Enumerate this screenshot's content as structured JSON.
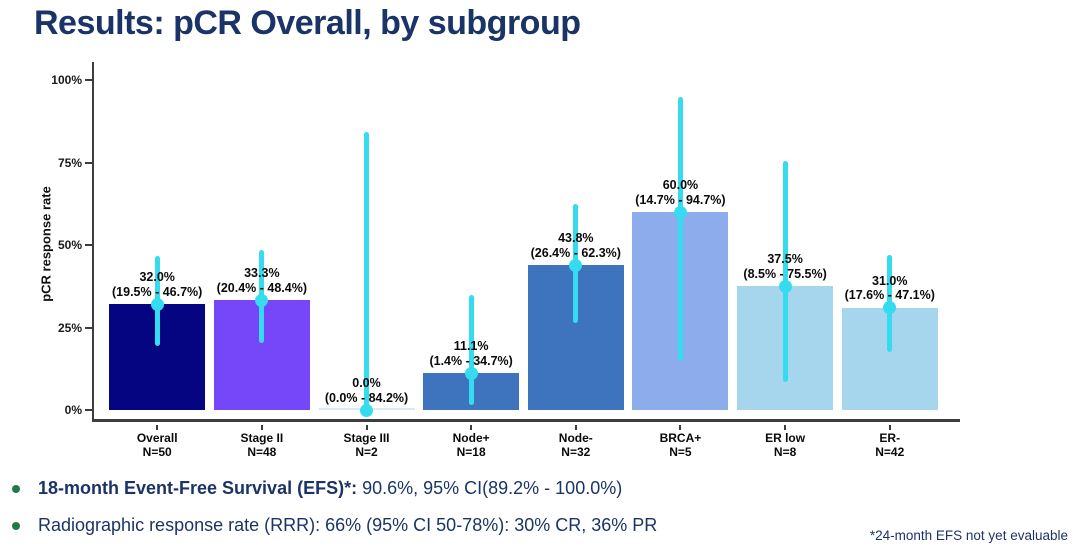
{
  "page": {
    "title": "Results: pCR Overall, by subgroup",
    "footnote": "*24-month EFS not yet evaluable"
  },
  "bullets": [
    {
      "bold": "18-month Event-Free Survival (EFS)*:",
      "rest": " 90.6%, 95% CI(89.2% - 100.0%)"
    },
    {
      "bold": "",
      "rest": "Radiographic response rate (RRR): 66% (95% CI 50-78%): 30% CR, 36% PR"
    }
  ],
  "chart_data": {
    "type": "bar",
    "title": "",
    "xlabel": "",
    "ylabel": "pCR response rate",
    "ylim": [
      0,
      100
    ],
    "grid": false,
    "legend": "none",
    "yticks": [
      0,
      25,
      50,
      75,
      100
    ],
    "ytick_labels": [
      "0%",
      "25%",
      "50%",
      "75%",
      "100%"
    ],
    "categories": [
      "Overall",
      "Stage II",
      "Stage III",
      "Node+",
      "Node-",
      "BRCA+",
      "ER low",
      "ER-"
    ],
    "n_labels": [
      "N=50",
      "N=48",
      "N=2",
      "N=18",
      "N=32",
      "N=5",
      "N=8",
      "N=42"
    ],
    "values": [
      32.0,
      33.3,
      0.0,
      11.1,
      43.8,
      60.0,
      37.5,
      31.0
    ],
    "ci_low": [
      19.5,
      20.4,
      0.0,
      1.4,
      26.4,
      14.7,
      8.5,
      17.6
    ],
    "ci_high": [
      46.7,
      48.4,
      84.2,
      34.7,
      62.3,
      94.7,
      75.5,
      47.1
    ],
    "value_labels": [
      "32.0%",
      "33.3%",
      "0.0%",
      "11.1%",
      "43.8%",
      "60.0%",
      "37.5%",
      "31.0%"
    ],
    "ci_labels": [
      "(19.5% - 46.7%)",
      "(20.4% - 48.4%)",
      "(0.0% - 84.2%)",
      "(1.4% - 34.7%)",
      "(26.4% - 62.3%)",
      "(14.7% - 94.7%)",
      "(8.5% - 75.5%)",
      "(17.6% - 47.1%)"
    ],
    "bar_colors": [
      "#050581",
      "#7547F8",
      "#D9E9F5",
      "#3E73BD",
      "#3E73BD",
      "#8CACEC",
      "#A6D6EE",
      "#A6D6EE"
    ],
    "errorbar_color": "#35DCEF"
  },
  "colors": {
    "title_text": "#1B3467",
    "bullet_dot": "#1E7A4A",
    "axis": "#3d3d3d",
    "label_text": "#0a0a0a"
  }
}
